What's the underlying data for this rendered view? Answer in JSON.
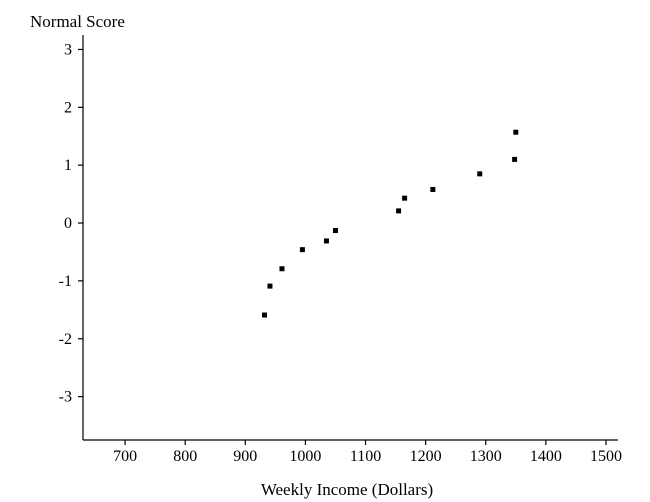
{
  "chart_data": {
    "type": "scatter",
    "title": "",
    "xlabel": "Weekly Income (Dollars)",
    "ylabel": "Normal Score",
    "xlim": [
      630,
      1520
    ],
    "ylim": [
      -3.75,
      3.25
    ],
    "xticks": [
      700,
      800,
      900,
      1000,
      1100,
      1200,
      1300,
      1400,
      1500
    ],
    "yticks": [
      3,
      2,
      1,
      0,
      -1,
      -2,
      -3
    ],
    "grid": false,
    "series": [
      {
        "points": [
          {
            "x": 932,
            "y": -1.59
          },
          {
            "x": 941,
            "y": -1.09
          },
          {
            "x": 961,
            "y": -0.79
          },
          {
            "x": 995,
            "y": -0.46
          },
          {
            "x": 1035,
            "y": -0.31
          },
          {
            "x": 1050,
            "y": -0.13
          },
          {
            "x": 1155,
            "y": 0.21
          },
          {
            "x": 1165,
            "y": 0.43
          },
          {
            "x": 1212,
            "y": 0.58
          },
          {
            "x": 1290,
            "y": 0.85
          },
          {
            "x": 1348,
            "y": 1.1
          },
          {
            "x": 1350,
            "y": 1.57
          }
        ]
      }
    ]
  }
}
